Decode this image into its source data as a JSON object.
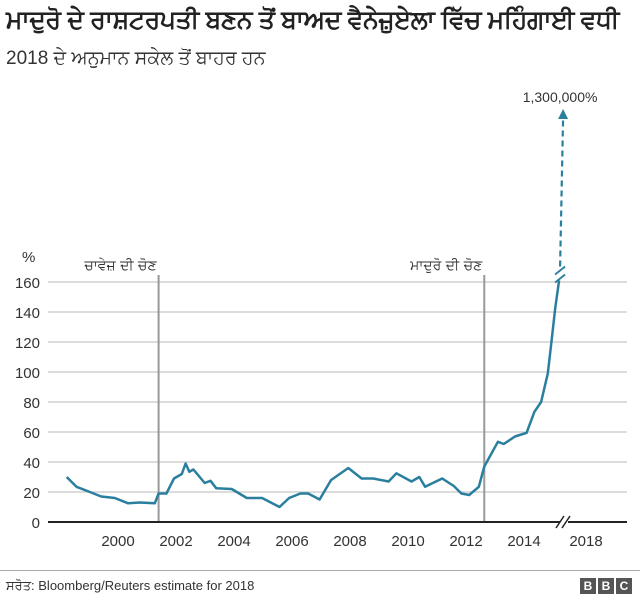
{
  "header": {
    "title": "ਮਾਦੁਰੋ ਦੇ ਰਾਸ਼ਟਰਪਤੀ ਬਣਨ ਤੋਂ ਬਾਅਦ ਵੈਨੇਜ਼ੁਏਲਾ ਵਿੱਚ ਮਹਿੰਗਾਈ ਵਧੀ",
    "subtitle": "2018 ਦੇ ਅਨੁਮਾਨ ਸਕੇਲ ਤੋਂ ਬਾਹਰ ਹਨ"
  },
  "footer": {
    "source": "ਸਰੋਤ: Bloomberg/Reuters estimate for 2018",
    "logo": [
      "B",
      "B",
      "C"
    ]
  },
  "chart_data": {
    "type": "line",
    "title": "ਮਾਦੁਰੋ ਦੇ ਰਾਸ਼ਟਰਪਤੀ ਬਣਨ ਤੋਂ ਬਾਅਦ ਵੈਨੇਜ਼ੁਏਲਾ ਵਿੱਚ ਮਹਿੰਗਾਈ ਵਧੀ",
    "ylabel": "%",
    "xlabel": "",
    "ylim": [
      0,
      160
    ],
    "yticks": [
      0,
      20,
      40,
      60,
      80,
      100,
      120,
      140,
      160
    ],
    "xticks": [
      "2000",
      "2002",
      "2004",
      "2006",
      "2008",
      "2010",
      "2012",
      "2014",
      "2018"
    ],
    "grid": true,
    "axis_break": "between 2014 and 2018",
    "line_color": "#2a7f9e",
    "series": [
      {
        "name": "Inflation",
        "x": [
          1998.23,
          1998.57,
          1999.03,
          1999.42,
          1999.89,
          2000.35,
          2000.74,
          2001.27,
          2001.4,
          2001.67,
          2001.93,
          2002.2,
          2002.33,
          2002.46,
          2002.6,
          2002.99,
          2003.19,
          2003.39,
          2003.92,
          2004.44,
          2004.97,
          2005.57,
          2005.9,
          2006.29,
          2006.56,
          2006.95,
          2007.35,
          2007.94,
          2008.4,
          2008.8,
          2009.33,
          2009.6,
          2010.12,
          2010.39,
          2010.59,
          2011.18,
          2011.58,
          2011.84,
          2012.11,
          2012.44,
          2012.63,
          2013.1,
          2013.3,
          2013.69,
          2014.09,
          2014.36,
          2014.59,
          2014.82,
          2014.95,
          2015.08,
          2015.21
        ],
        "y": [
          30,
          23.5,
          20,
          17,
          16,
          12.5,
          13,
          12.5,
          19,
          19,
          29,
          32,
          39,
          33.5,
          35,
          26,
          27.5,
          22.5,
          22,
          16,
          16,
          10,
          16,
          19,
          19,
          15,
          28,
          36,
          29,
          29,
          27,
          32.5,
          27,
          30,
          23.5,
          29,
          24,
          19,
          18,
          23.5,
          37,
          53.5,
          52,
          57,
          59.5,
          73.5,
          80,
          99,
          121,
          143,
          161
        ]
      }
    ],
    "annotations": [
      {
        "label": "ਚਾਵੇਜ਼ ਦੀ ਚੋਣ",
        "x": 2001.4
      },
      {
        "label": "ਮਾਦੁਰੋ ਦੀ ਚੋਣ",
        "x": 2012.63
      },
      {
        "label": "1,300,000%",
        "x": 2018,
        "note": "2018 estimate off scale, dashed arrow"
      }
    ]
  }
}
